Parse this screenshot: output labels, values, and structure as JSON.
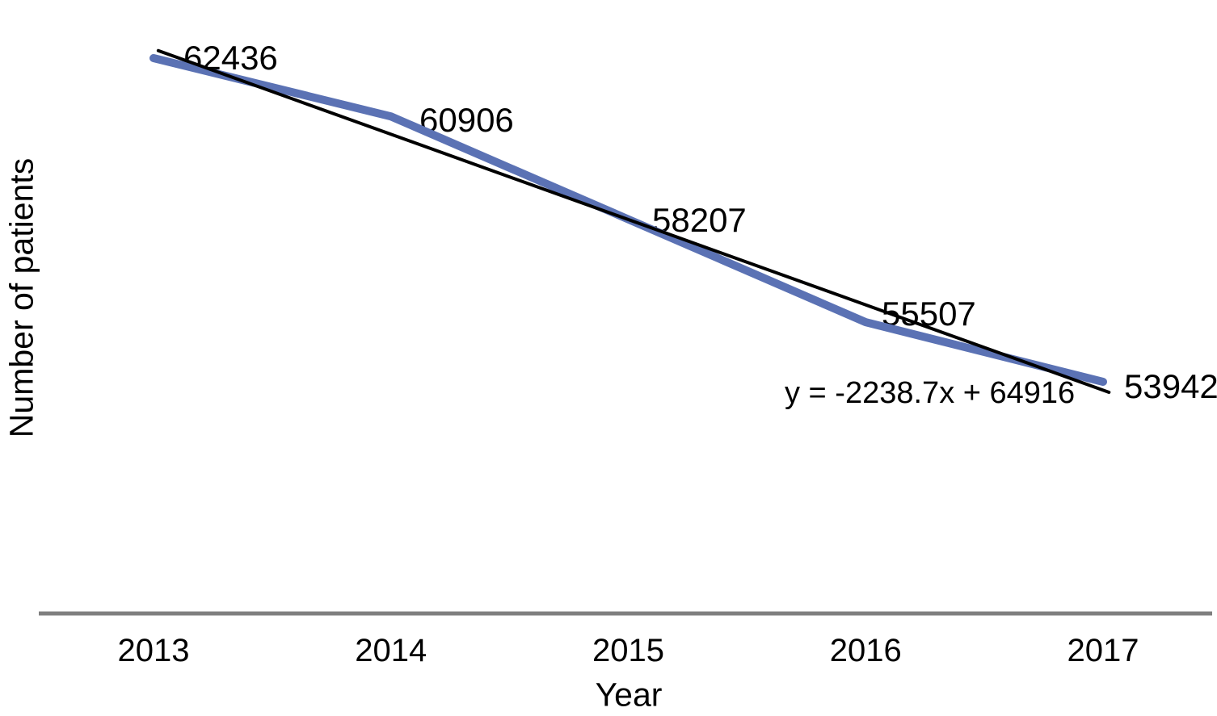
{
  "chart_data": {
    "type": "line",
    "title": "",
    "xlabel": "Year",
    "ylabel": "Number of patients",
    "categories": [
      "2013",
      "2014",
      "2015",
      "2016",
      "2017"
    ],
    "series": [
      {
        "name": "Number of patients",
        "values": [
          62436,
          60906,
          58207,
          55507,
          53942
        ],
        "color": "#5b72b4",
        "style": "thick-solid-line"
      },
      {
        "name": "Linear trendline",
        "kind": "linear-trendline",
        "slope": -2238.7,
        "intercept": 64916,
        "label": "y = -2238.7x + 64916",
        "color": "#000000",
        "style": "thin-solid-line"
      }
    ],
    "data_labels": [
      "62436",
      "60906",
      "58207",
      "55507",
      "53942"
    ],
    "axis": {
      "x_ticks": [
        "2013",
        "2014",
        "2015",
        "2016",
        "2017"
      ],
      "x_axis_line_color": "#7f7f7f",
      "y_axis_visible": false,
      "grid": false,
      "legend": "none",
      "ylim": [
        53942,
        62436
      ]
    }
  }
}
